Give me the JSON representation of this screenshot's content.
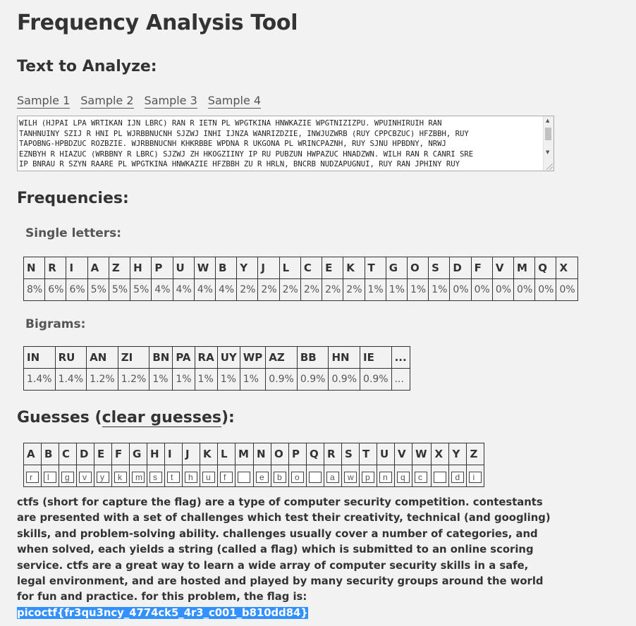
{
  "title": "Frequency Analysis Tool",
  "text_heading": "Text to Analyze:",
  "samples": [
    "Sample 1",
    "Sample 2",
    "Sample 3",
    "Sample 4"
  ],
  "textarea_value": "WILH (HJPAI LPA WRTIKAN IJN LBRC) RAN R IETN PL WPGTKINA HNWKAZIE WPGTNIZIZPU. WPUINHIRUIH RAN\nTANHNUINY SZIJ R HNI PL WJRBBNUCNH SJZWJ INHI IJNZA WANRIZDZIE, INWJUZWRB (RUY CPPCBZUC) HFZBBH, RUY\nTAPOBNG-HPBDZUC ROZBZIE. WJRBBNUCNH KHKRBBE WPDNA R UKGONA PL WRINCPAZNH, RUY SJNU HPBDNY, NRWJ\nEZNBYH R HIAZUC (WRBBNY R LBRC) SJZWJ ZH HKOGZIINY IP RU PUBZUN HWPAZUC HNADZWN. WILH RAN R CANRI SRE\nIP BNRAU R SZYN RAARE PL WPGTKINA HNWKAZIE HFZBBH ZU R HRLN, BNCRB NUDZAPUGNUI, RUY RAN JPHINY RUY",
  "frequencies_heading": "Frequencies:",
  "single_heading": "Single letters:",
  "single": {
    "letters": [
      "N",
      "R",
      "I",
      "A",
      "Z",
      "H",
      "P",
      "U",
      "W",
      "B",
      "Y",
      "J",
      "L",
      "C",
      "E",
      "K",
      "T",
      "G",
      "O",
      "S",
      "D",
      "F",
      "V",
      "M",
      "Q",
      "X"
    ],
    "percents": [
      "8%",
      "6%",
      "6%",
      "5%",
      "5%",
      "5%",
      "4%",
      "4%",
      "4%",
      "4%",
      "2%",
      "2%",
      "2%",
      "2%",
      "2%",
      "2%",
      "1%",
      "1%",
      "1%",
      "1%",
      "0%",
      "0%",
      "0%",
      "0%",
      "0%",
      "0%"
    ]
  },
  "bigram_heading": "Bigrams:",
  "bigrams": {
    "pairs": [
      "IN",
      "RU",
      "AN",
      "ZI",
      "BN",
      "PA",
      "RA",
      "UY",
      "WP",
      "AZ",
      "BB",
      "HN",
      "IE",
      "..."
    ],
    "percents": [
      "1.4%",
      "1.4%",
      "1.2%",
      "1.2%",
      "1%",
      "1%",
      "1%",
      "1%",
      "1%",
      "0.9%",
      "0.9%",
      "0.9%",
      "0.9%",
      "..."
    ]
  },
  "guesses_heading_pre": "Guesses (",
  "clear_label": "clear guesses",
  "guesses_heading_post": "):",
  "guesses": {
    "letters": [
      "A",
      "B",
      "C",
      "D",
      "E",
      "F",
      "G",
      "H",
      "I",
      "J",
      "K",
      "L",
      "M",
      "N",
      "O",
      "P",
      "Q",
      "R",
      "S",
      "T",
      "U",
      "V",
      "W",
      "X",
      "Y",
      "Z"
    ],
    "values": [
      "r",
      "l",
      "g",
      "v",
      "y",
      "k",
      "m",
      "s",
      "t",
      "h",
      "u",
      "f",
      "",
      "e",
      "b",
      "o",
      "",
      "a",
      "w",
      "p",
      "n",
      "q",
      "c",
      "",
      "d",
      "i"
    ]
  },
  "plaintext": "ctfs (short for capture the flag) are a type of computer security competition. contestants are presented with a set of challenges which test their creativity, technical (and googling) skills, and problem-solving ability. challenges usually cover a number of categories, and when solved, each yields a string (called a flag) which is submitted to an online scoring service. ctfs are a great way to learn a wide array of computer security skills in a safe, legal environment, and are hosted and played by many security groups around the world for fun and practice. for this problem, the flag is:",
  "flag": "picoctf{fr3qu3ncy_4774ck5_4r3_c001_b810dd84}",
  "colors": {
    "background": "#f2f2f2",
    "text": "#333333",
    "selection": "#3390ff"
  }
}
